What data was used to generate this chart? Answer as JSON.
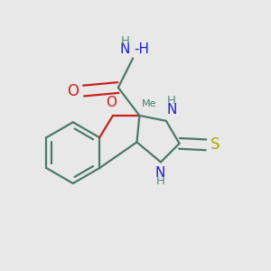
{
  "bg_color": "#e8e8e8",
  "bond_color": "#4a7a6a",
  "bond_width": 1.6,
  "atom_colors": {
    "O": "#cc2020",
    "N": "#2020cc",
    "S": "#aaaa00",
    "C": "#4a7a6a",
    "H": "#5a8a7a"
  }
}
